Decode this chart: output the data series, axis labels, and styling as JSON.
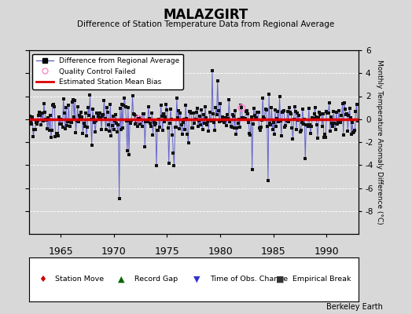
{
  "title": "MALAZGIRT",
  "subtitle": "Difference of Station Temperature Data from Regional Average",
  "ylabel": "Monthly Temperature Anomaly Difference (°C)",
  "xlabel_years": [
    1965,
    1970,
    1975,
    1980,
    1985,
    1990
  ],
  "ylim": [
    -10,
    6
  ],
  "yticks": [
    -8,
    -6,
    -4,
    -2,
    0,
    2,
    4,
    6
  ],
  "mean_bias": -0.05,
  "background_color": "#d8d8d8",
  "plot_bg_color": "#d8d8d8",
  "line_color": "#6666cc",
  "marker_color": "#111111",
  "bias_color": "#dd0000",
  "qc_edge_color": "#ff88cc",
  "watermark": "Berkeley Earth",
  "year_start": 1962.0,
  "year_end": 1993.0
}
